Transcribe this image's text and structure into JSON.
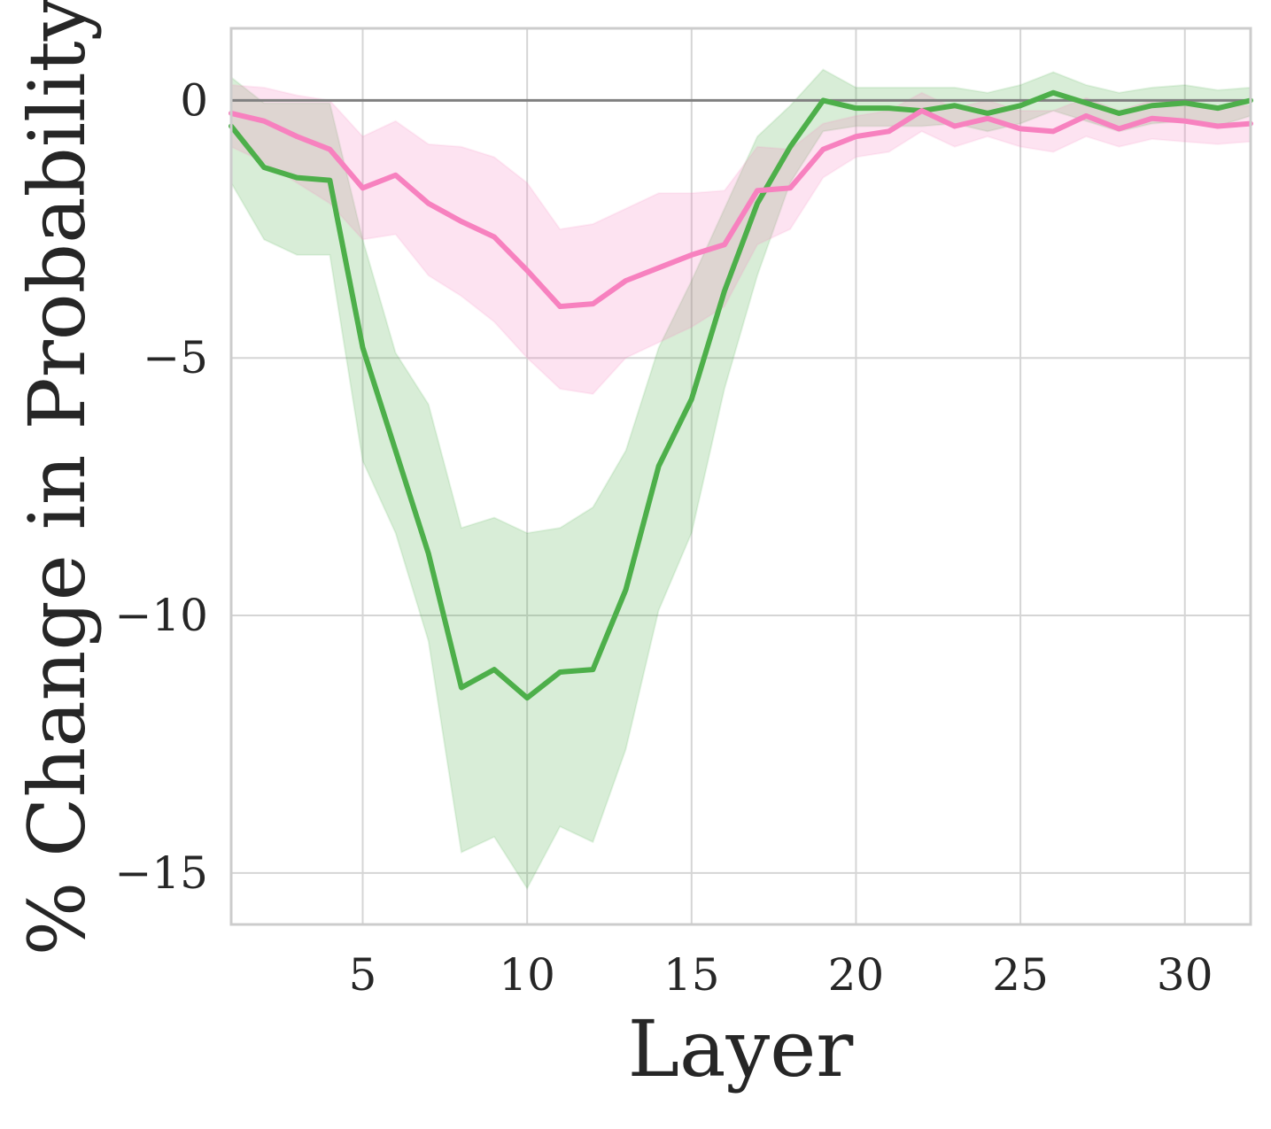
{
  "chart_data": {
    "type": "line",
    "title": "",
    "xlabel": "Layer",
    "ylabel": "% Change in Probability",
    "xlim": [
      1,
      32
    ],
    "ylim": [
      -16,
      1.4
    ],
    "xticks": [
      5,
      10,
      15,
      20,
      25,
      30
    ],
    "yticks": [
      0,
      -5,
      -10,
      -15
    ],
    "ytick_labels": [
      "0",
      "−5",
      "−10",
      "−15"
    ],
    "grid": true,
    "legend": "none",
    "reference_line": {
      "y": 0,
      "color": "#808080"
    },
    "x": [
      1,
      2,
      3,
      4,
      5,
      6,
      7,
      8,
      9,
      10,
      11,
      12,
      13,
      14,
      15,
      16,
      17,
      18,
      19,
      20,
      21,
      22,
      23,
      24,
      25,
      26,
      27,
      28,
      29,
      30,
      31,
      32
    ],
    "series": [
      {
        "color": "#4daf4a",
        "band_color": "#4daf4a",
        "values": [
          -0.5,
          -1.3,
          -1.5,
          -1.55,
          -4.8,
          -6.8,
          -8.8,
          -11.4,
          -11.05,
          -11.6,
          -11.1,
          -11.05,
          -9.5,
          -7.1,
          -5.8,
          -3.7,
          -2.0,
          -0.9,
          0.0,
          -0.15,
          -0.15,
          -0.2,
          -0.1,
          -0.25,
          -0.1,
          0.15,
          -0.05,
          -0.25,
          -0.1,
          -0.05,
          -0.15,
          0.0
        ],
        "lower": [
          -1.6,
          -2.7,
          -3.0,
          -3.0,
          -7.0,
          -8.4,
          -10.5,
          -14.6,
          -14.3,
          -15.3,
          -14.1,
          -14.4,
          -12.6,
          -9.9,
          -8.4,
          -5.6,
          -3.4,
          -1.6,
          -0.6,
          -0.5,
          -0.5,
          -0.5,
          -0.45,
          -0.6,
          -0.45,
          -0.2,
          -0.4,
          -0.6,
          -0.45,
          -0.4,
          -0.5,
          -0.3
        ],
        "upper": [
          0.45,
          -0.05,
          -0.05,
          -0.05,
          -2.7,
          -4.9,
          -5.9,
          -8.3,
          -8.1,
          -8.4,
          -8.3,
          -7.9,
          -6.8,
          -4.8,
          -3.5,
          -2.1,
          -0.7,
          -0.1,
          0.6,
          0.25,
          0.25,
          0.25,
          0.25,
          0.15,
          0.3,
          0.55,
          0.3,
          0.15,
          0.25,
          0.3,
          0.2,
          0.25
        ]
      },
      {
        "color": "#f781bf",
        "band_color": "#f781bf",
        "values": [
          -0.25,
          -0.4,
          -0.7,
          -0.95,
          -1.7,
          -1.45,
          -2.0,
          -2.35,
          -2.65,
          -3.3,
          -4.0,
          -3.95,
          -3.5,
          -3.25,
          -3.0,
          -2.8,
          -1.75,
          -1.7,
          -0.95,
          -0.7,
          -0.6,
          -0.2,
          -0.5,
          -0.35,
          -0.55,
          -0.6,
          -0.3,
          -0.55,
          -0.35,
          -0.4,
          -0.5,
          -0.45
        ],
        "lower": [
          -0.9,
          -1.2,
          -1.6,
          -2.0,
          -2.7,
          -2.6,
          -3.4,
          -3.8,
          -4.3,
          -5.0,
          -5.6,
          -5.7,
          -5.0,
          -4.7,
          -4.4,
          -4.0,
          -2.8,
          -2.5,
          -1.5,
          -1.1,
          -1.0,
          -0.6,
          -0.9,
          -0.7,
          -0.9,
          -1.0,
          -0.7,
          -0.9,
          -0.75,
          -0.8,
          -0.85,
          -0.8
        ],
        "upper": [
          0.3,
          0.25,
          0.1,
          0.0,
          -0.7,
          -0.4,
          -0.85,
          -0.9,
          -1.1,
          -1.6,
          -2.5,
          -2.4,
          -2.1,
          -1.8,
          -1.8,
          -1.75,
          -0.9,
          -0.95,
          -0.45,
          -0.3,
          -0.2,
          0.15,
          -0.15,
          0.0,
          -0.2,
          -0.2,
          0.05,
          -0.2,
          0.0,
          -0.05,
          -0.1,
          -0.1
        ]
      }
    ]
  }
}
